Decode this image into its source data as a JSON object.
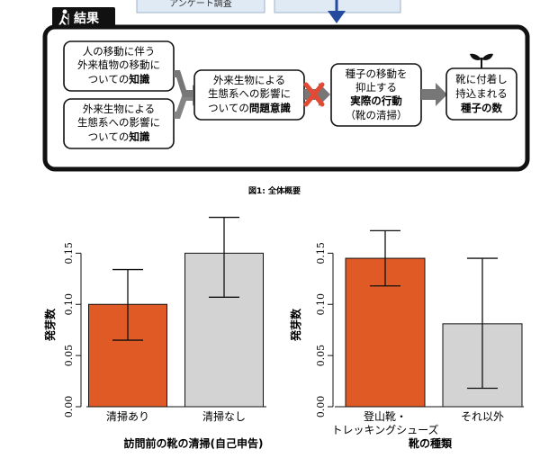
{
  "top_strip": {
    "text": "アンケート調査"
  },
  "result_label": "結果",
  "flow": {
    "box1": [
      "人の移動に伴う",
      "外来植物の移動に",
      "ついての",
      "知識"
    ],
    "box2": [
      "外来生物による",
      "生態系への影響に",
      "ついての",
      "知識"
    ],
    "box3": [
      "外来生物による",
      "生態系への影響に",
      "ついての",
      "問題意識"
    ],
    "box4": [
      "種子の移動を",
      "抑止する",
      "実際の行動",
      "（靴の清掃）"
    ],
    "box5": [
      "靴に付着し",
      "持込まれる",
      "種子の数"
    ]
  },
  "figure_caption": "図1: 全体概要",
  "colors": {
    "orange": "#e05a26",
    "gray": "#d3d3d3",
    "dark": "#111111",
    "arrow": "#777777",
    "cross": "#e34a33"
  },
  "chart_data": [
    {
      "type": "bar",
      "ylabel": "発芽数",
      "xlabel": "訪問前の靴の清掃(自己申告)",
      "ylim": [
        0,
        0.16
      ],
      "yticks": [
        "0.00",
        "0.05",
        "0.10",
        "0.15"
      ],
      "categories": [
        "清掃あり",
        "清掃なし"
      ],
      "values": [
        0.1,
        0.15
      ],
      "error_low": [
        0.065,
        0.107
      ],
      "error_high": [
        0.134,
        0.185
      ],
      "bar_colors": [
        "#e05a26",
        "#d3d3d3"
      ]
    },
    {
      "type": "bar",
      "ylabel": "発芽数",
      "xlabel": "靴の種類",
      "ylim": [
        0,
        0.16
      ],
      "yticks": [
        "0.00",
        "0.05",
        "0.10",
        "0.15"
      ],
      "categories": [
        "登山靴・トレッキングシューズ",
        "それ以外"
      ],
      "category_lines": [
        [
          "登山靴・",
          "トレッキングシューズ"
        ],
        [
          "それ以外"
        ]
      ],
      "values": [
        0.145,
        0.081
      ],
      "error_low": [
        0.118,
        0.018
      ],
      "error_high": [
        0.172,
        0.145
      ],
      "bar_colors": [
        "#e05a26",
        "#d3d3d3"
      ]
    }
  ]
}
